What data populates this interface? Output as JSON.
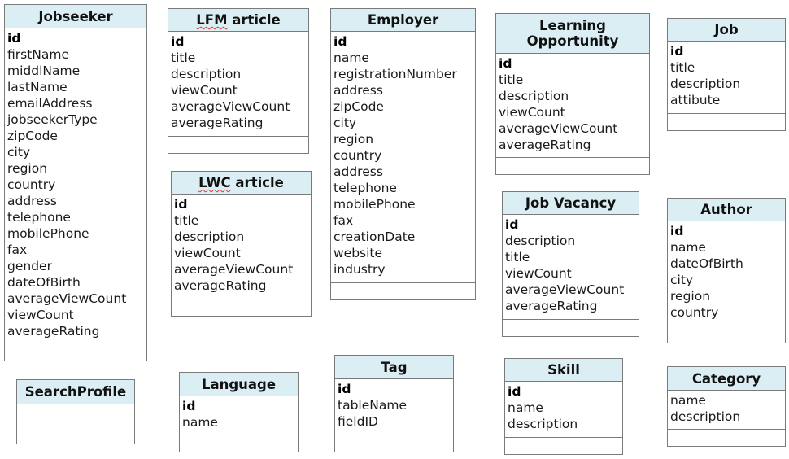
{
  "entities": {
    "jobseeker": {
      "title": "Jobseeker",
      "attributes": [
        "id",
        "firstName",
        "middlName",
        "lastName",
        "emailAddress",
        "jobseekerType",
        "zipCode",
        "city",
        "region",
        "country",
        "address",
        "telephone",
        "mobilePhone",
        "fax",
        "gender",
        "dateOfBirth",
        "averageViewCount",
        "viewCount",
        "averageRating"
      ]
    },
    "lfm_article": {
      "title_spell": "LFM",
      "title_rest": " article",
      "attributes": [
        "id",
        "title",
        "description",
        "viewCount",
        "averageViewCount",
        "averageRating"
      ]
    },
    "lwc_article": {
      "title_spell": "LWC",
      "title_rest": " article",
      "attributes": [
        "id",
        "title",
        "description",
        "viewCount",
        "averageViewCount",
        "averageRating"
      ]
    },
    "employer": {
      "title": "Employer",
      "attributes": [
        "id",
        "name",
        "registrationNumber",
        "address",
        "zipCode",
        "city",
        "region",
        "country",
        "address",
        "telephone",
        "mobilePhone",
        "fax",
        "creationDate",
        "website",
        "industry"
      ]
    },
    "learning_opportunity": {
      "title_line1": "Learning",
      "title_line2": "Opportunity",
      "attributes": [
        "id",
        "title",
        "description",
        "viewCount",
        "averageViewCount",
        "averageRating"
      ]
    },
    "job": {
      "title": "Job",
      "attributes": [
        "id",
        "title",
        "description",
        "attibute"
      ]
    },
    "job_vacancy": {
      "title": "Job Vacancy",
      "attributes": [
        "id",
        "description",
        "title",
        "viewCount",
        "averageViewCount",
        "averageRating"
      ]
    },
    "author": {
      "title": "Author",
      "attributes": [
        "id",
        "name",
        "dateOfBirth",
        "city",
        "region",
        "country"
      ]
    },
    "search_profile": {
      "title": "SearchProfile",
      "attributes": []
    },
    "language": {
      "title": "Language",
      "attributes": [
        "id",
        "name"
      ]
    },
    "tag": {
      "title": "Tag",
      "attributes": [
        "id",
        "tableName",
        "fieldID"
      ]
    },
    "skill": {
      "title": "Skill",
      "attributes": [
        "id",
        "name",
        "description"
      ]
    },
    "category": {
      "title": "Category",
      "attributes": [
        "name",
        "description"
      ]
    }
  }
}
